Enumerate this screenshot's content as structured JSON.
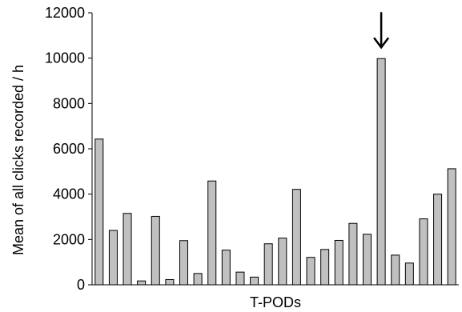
{
  "chart_data": {
    "type": "bar",
    "xlabel": "T-PODs",
    "ylabel": "Mean of all clicks recorded / h",
    "ylim": [
      0,
      12000
    ],
    "yticks": [
      0,
      2000,
      4000,
      6000,
      8000,
      10000,
      12000
    ],
    "ytick_labels": [
      "0",
      "2000",
      "4000",
      "6000",
      "8000",
      "10000",
      "12000"
    ],
    "grid": false,
    "legend": "none",
    "colors": {
      "bar_fill": "#c0c0c0",
      "bar_stroke": "#000000"
    },
    "values": [
      6430,
      2400,
      3150,
      170,
      3020,
      230,
      1950,
      500,
      4580,
      1530,
      560,
      340,
      1810,
      2060,
      4210,
      1210,
      1560,
      1960,
      2710,
      2230,
      9980,
      1310,
      960,
      2910,
      4000,
      5120
    ],
    "annotation": {
      "type": "arrow-down",
      "bar_index": 20,
      "icon": "down-arrow-icon"
    }
  }
}
